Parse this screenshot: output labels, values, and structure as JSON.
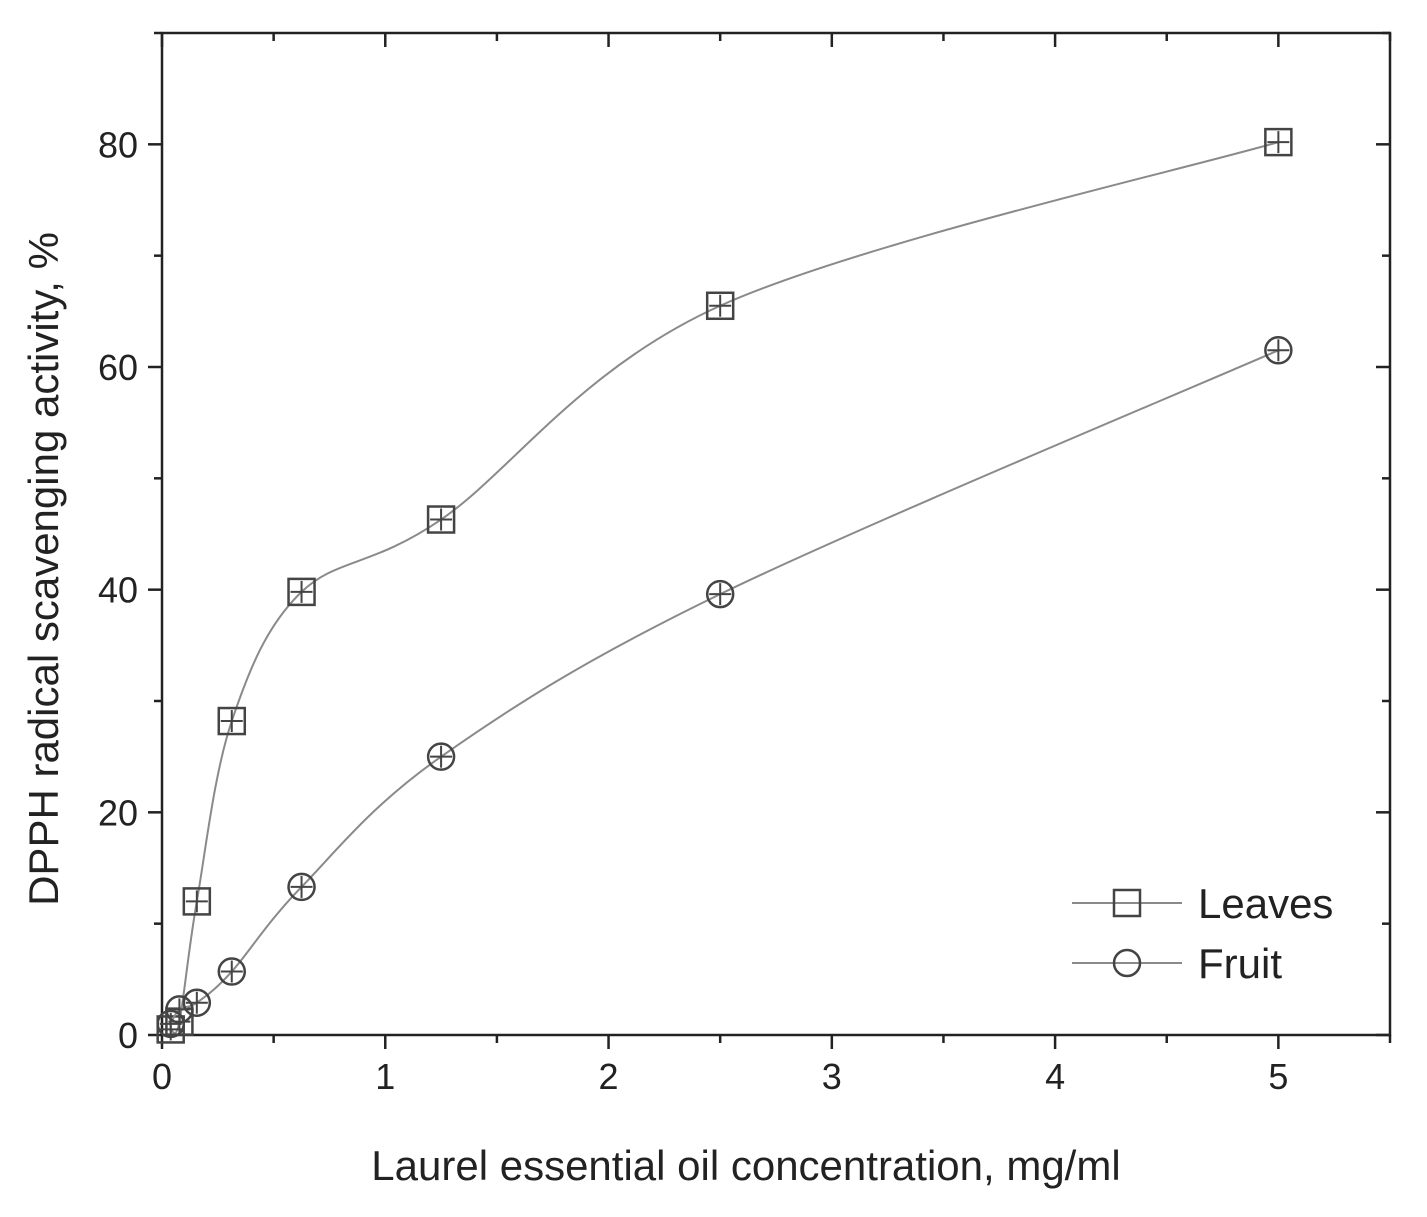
{
  "chart_data": {
    "type": "line",
    "xlabel": "Laurel essential oil concentration, mg/ml",
    "ylabel": "DPPH radical scavenging activity, %",
    "xlim": [
      0,
      5.5
    ],
    "ylim": [
      0,
      90
    ],
    "xticks": [
      0,
      1,
      2,
      3,
      4,
      5
    ],
    "yticks": [
      0,
      20,
      40,
      60,
      80
    ],
    "grid": false,
    "legend_position": "bottom-right",
    "series": [
      {
        "name": "Leaves",
        "marker": "square",
        "color": "#444444",
        "x": [
          0.039,
          0.078,
          0.156,
          0.3125,
          0.625,
          1.25,
          2.5,
          5.0
        ],
        "y": [
          0.5,
          1.2,
          12.0,
          28.2,
          39.8,
          46.3,
          65.5,
          80.2
        ]
      },
      {
        "name": "Fruit",
        "marker": "circle",
        "color": "#444444",
        "x": [
          0.039,
          0.078,
          0.156,
          0.3125,
          0.625,
          1.25,
          2.5,
          5.0
        ],
        "y": [
          1.0,
          2.3,
          2.9,
          5.7,
          13.3,
          25.0,
          39.6,
          61.5
        ]
      }
    ]
  }
}
